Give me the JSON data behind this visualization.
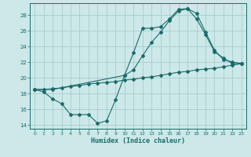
{
  "xlabel": "Humidex (Indice chaleur)",
  "xlim": [
    -0.5,
    23.5
  ],
  "ylim": [
    13.5,
    29.5
  ],
  "xticks": [
    0,
    1,
    2,
    3,
    4,
    5,
    6,
    7,
    8,
    9,
    10,
    11,
    12,
    13,
    14,
    15,
    16,
    17,
    18,
    19,
    20,
    21,
    22,
    23
  ],
  "yticks": [
    14,
    16,
    18,
    20,
    22,
    24,
    26,
    28
  ],
  "bg_color": "#cce8e8",
  "line_color": "#1a6b6b",
  "grid_color": "#aacccc",
  "curve1_x": [
    0,
    1,
    2,
    3,
    4,
    5,
    6,
    7,
    8,
    9,
    10,
    11,
    12,
    13,
    14,
    15,
    16,
    17,
    18,
    19,
    20,
    21,
    22,
    23
  ],
  "curve1_y": [
    18.5,
    18.2,
    17.3,
    16.7,
    15.3,
    15.3,
    15.3,
    14.2,
    14.5,
    17.2,
    20.3,
    23.2,
    26.3,
    26.3,
    26.5,
    27.5,
    28.7,
    28.8,
    28.2,
    25.8,
    23.5,
    22.3,
    22.0,
    21.8
  ],
  "curve2_x": [
    0,
    2,
    10,
    11,
    12,
    13,
    14,
    15,
    16,
    17,
    18,
    19,
    20,
    21,
    22,
    23
  ],
  "curve2_y": [
    18.5,
    18.5,
    20.3,
    21.0,
    22.8,
    24.5,
    25.8,
    27.3,
    28.5,
    28.8,
    27.5,
    25.5,
    23.3,
    22.5,
    21.8,
    21.8
  ],
  "curve3_x": [
    0,
    1,
    2,
    3,
    4,
    5,
    6,
    7,
    8,
    9,
    10,
    11,
    12,
    13,
    14,
    15,
    16,
    17,
    18,
    19,
    20,
    21,
    22,
    23
  ],
  "curve3_y": [
    18.5,
    18.5,
    18.6,
    18.7,
    18.9,
    19.0,
    19.2,
    19.3,
    19.4,
    19.5,
    19.7,
    19.8,
    20.0,
    20.1,
    20.3,
    20.5,
    20.7,
    20.8,
    21.0,
    21.1,
    21.2,
    21.4,
    21.6,
    21.8
  ]
}
